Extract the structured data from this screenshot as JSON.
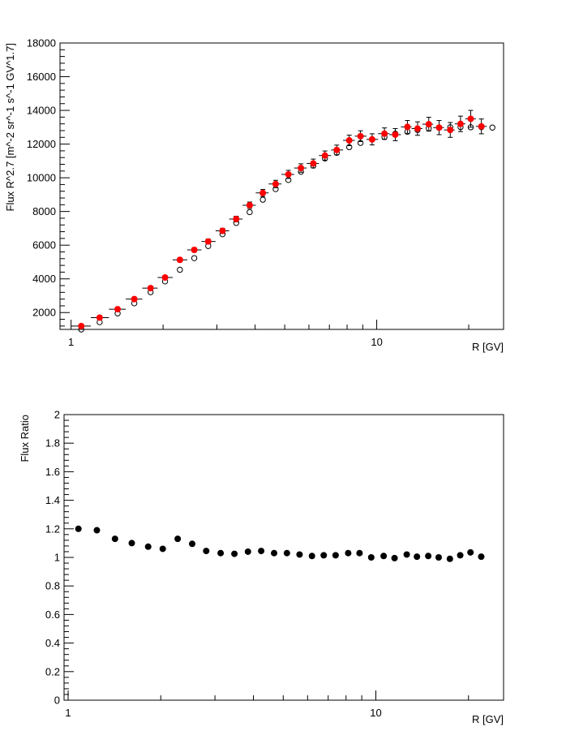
{
  "chart_data": [
    {
      "type": "scatter",
      "xlabel": "R [GV]",
      "ylabel": "Flux R^2.7 [m^-2 sr^-1 s^-1 GV^1.7]",
      "xscale": "log",
      "xlim": [
        0.92,
        26
      ],
      "ylim": [
        1000,
        18000
      ],
      "xticks": [
        {
          "v": 1,
          "label": "1"
        },
        {
          "v": 10,
          "label": "10"
        }
      ],
      "yticks": [
        {
          "v": 2000,
          "label": "2000"
        },
        {
          "v": 4000,
          "label": "4000"
        },
        {
          "v": 6000,
          "label": "6000"
        },
        {
          "v": 8000,
          "label": "8000"
        },
        {
          "v": 10000,
          "label": "10000"
        },
        {
          "v": 12000,
          "label": "12000"
        },
        {
          "v": 14000,
          "label": "14000"
        },
        {
          "v": 16000,
          "label": "16000"
        },
        {
          "v": 18000,
          "label": "18000"
        }
      ],
      "grid": false,
      "series": [
        {
          "marker": "filled-circle",
          "color": "#ff0000",
          "error_bars": true,
          "points": [
            {
              "x": 1.08,
              "xlo": 1.0,
              "xhi": 1.16,
              "y": 1200,
              "err": 60
            },
            {
              "x": 1.24,
              "xlo": 1.16,
              "xhi": 1.33,
              "y": 1700,
              "err": 80
            },
            {
              "x": 1.42,
              "xlo": 1.33,
              "xhi": 1.51,
              "y": 2200,
              "err": 90
            },
            {
              "x": 1.61,
              "xlo": 1.51,
              "xhi": 1.71,
              "y": 2800,
              "err": 100
            },
            {
              "x": 1.82,
              "xlo": 1.71,
              "xhi": 1.92,
              "y": 3450,
              "err": 110
            },
            {
              "x": 2.03,
              "xlo": 1.92,
              "xhi": 2.15,
              "y": 4080,
              "err": 120
            },
            {
              "x": 2.27,
              "xlo": 2.15,
              "xhi": 2.4,
              "y": 5130,
              "err": 120
            },
            {
              "x": 2.53,
              "xlo": 2.4,
              "xhi": 2.67,
              "y": 5720,
              "err": 130
            },
            {
              "x": 2.81,
              "xlo": 2.67,
              "xhi": 2.97,
              "y": 6220,
              "err": 140
            },
            {
              "x": 3.13,
              "xlo": 2.97,
              "xhi": 3.29,
              "y": 6850,
              "err": 150
            },
            {
              "x": 3.47,
              "xlo": 3.29,
              "xhi": 3.64,
              "y": 7550,
              "err": 170
            },
            {
              "x": 3.84,
              "xlo": 3.64,
              "xhi": 4.02,
              "y": 8370,
              "err": 190
            },
            {
              "x": 4.24,
              "xlo": 4.02,
              "xhi": 4.43,
              "y": 9100,
              "err": 210
            },
            {
              "x": 4.67,
              "xlo": 4.43,
              "xhi": 4.88,
              "y": 9630,
              "err": 220
            },
            {
              "x": 5.14,
              "xlo": 4.88,
              "xhi": 5.37,
              "y": 10200,
              "err": 240
            },
            {
              "x": 5.65,
              "xlo": 5.37,
              "xhi": 5.9,
              "y": 10580,
              "err": 250
            },
            {
              "x": 6.2,
              "xlo": 5.9,
              "xhi": 6.47,
              "y": 10850,
              "err": 260
            },
            {
              "x": 6.77,
              "xlo": 6.47,
              "xhi": 7.09,
              "y": 11320,
              "err": 270
            },
            {
              "x": 7.4,
              "xlo": 7.09,
              "xhi": 7.76,
              "y": 11650,
              "err": 290
            },
            {
              "x": 8.13,
              "xlo": 7.76,
              "xhi": 8.48,
              "y": 12220,
              "err": 310
            },
            {
              "x": 8.85,
              "xlo": 8.48,
              "xhi": 9.26,
              "y": 12470,
              "err": 320
            },
            {
              "x": 9.66,
              "xlo": 9.26,
              "xhi": 10.1,
              "y": 12280,
              "err": 330
            },
            {
              "x": 10.6,
              "xlo": 10.1,
              "xhi": 11.0,
              "y": 12620,
              "err": 340
            },
            {
              "x": 11.5,
              "xlo": 11.0,
              "xhi": 12.0,
              "y": 12560,
              "err": 360
            },
            {
              "x": 12.6,
              "xlo": 12.0,
              "xhi": 13.0,
              "y": 13020,
              "err": 380
            },
            {
              "x": 13.6,
              "xlo": 13.0,
              "xhi": 14.1,
              "y": 12920,
              "err": 400
            },
            {
              "x": 14.8,
              "xlo": 14.1,
              "xhi": 15.3,
              "y": 13180,
              "err": 410
            },
            {
              "x": 16.0,
              "xlo": 15.3,
              "xhi": 16.6,
              "y": 12980,
              "err": 420
            },
            {
              "x": 17.4,
              "xlo": 16.6,
              "xhi": 18.0,
              "y": 12840,
              "err": 440
            },
            {
              "x": 18.8,
              "xlo": 18.0,
              "xhi": 19.5,
              "y": 13200,
              "err": 460
            },
            {
              "x": 20.3,
              "xlo": 19.5,
              "xhi": 21.1,
              "y": 13500,
              "err": 500
            },
            {
              "x": 22.0,
              "xlo": 21.1,
              "xhi": 22.9,
              "y": 13050,
              "err": 440
            }
          ]
        },
        {
          "marker": "open-circle",
          "color": "#000000",
          "error_bars": false,
          "points": [
            {
              "x": 1.08,
              "y": 1000
            },
            {
              "x": 1.24,
              "y": 1430
            },
            {
              "x": 1.42,
              "y": 1950
            },
            {
              "x": 1.61,
              "y": 2550
            },
            {
              "x": 1.82,
              "y": 3210
            },
            {
              "x": 2.03,
              "y": 3850
            },
            {
              "x": 2.27,
              "y": 4540
            },
            {
              "x": 2.53,
              "y": 5230
            },
            {
              "x": 2.81,
              "y": 5950
            },
            {
              "x": 3.13,
              "y": 6650
            },
            {
              "x": 3.47,
              "y": 7320
            },
            {
              "x": 3.84,
              "y": 7960
            },
            {
              "x": 4.24,
              "y": 8700
            },
            {
              "x": 4.67,
              "y": 9330
            },
            {
              "x": 5.14,
              "y": 9870
            },
            {
              "x": 5.65,
              "y": 10360
            },
            {
              "x": 6.2,
              "y": 10720
            },
            {
              "x": 6.77,
              "y": 11150
            },
            {
              "x": 7.4,
              "y": 11480
            },
            {
              "x": 8.13,
              "y": 11820
            },
            {
              "x": 8.85,
              "y": 12070
            },
            {
              "x": 9.66,
              "y": 12270
            },
            {
              "x": 10.6,
              "y": 12420
            },
            {
              "x": 11.5,
              "y": 12620
            },
            {
              "x": 12.6,
              "y": 12730
            },
            {
              "x": 13.6,
              "y": 12840
            },
            {
              "x": 14.8,
              "y": 12930
            },
            {
              "x": 16.0,
              "y": 12980
            },
            {
              "x": 17.4,
              "y": 13000
            },
            {
              "x": 18.8,
              "y": 13010
            },
            {
              "x": 20.3,
              "y": 13000
            },
            {
              "x": 22.0,
              "y": 13010
            },
            {
              "x": 23.9,
              "y": 12980
            }
          ]
        }
      ]
    },
    {
      "type": "scatter",
      "xlabel": "R [GV]",
      "ylabel": "Flux Ratio",
      "xscale": "log",
      "xlim": [
        0.97,
        26
      ],
      "ylim": [
        0,
        2
      ],
      "xticks": [
        {
          "v": 1,
          "label": "1"
        },
        {
          "v": 10,
          "label": "10"
        }
      ],
      "yticks": [
        {
          "v": 0,
          "label": "0"
        },
        {
          "v": 0.2,
          "label": "0.2"
        },
        {
          "v": 0.4,
          "label": "0.4"
        },
        {
          "v": 0.6,
          "label": "0.6"
        },
        {
          "v": 0.8,
          "label": "0.8"
        },
        {
          "v": 1,
          "label": "1"
        },
        {
          "v": 1.2,
          "label": "1.2"
        },
        {
          "v": 1.4,
          "label": "1.4"
        },
        {
          "v": 1.6,
          "label": "1.6"
        },
        {
          "v": 1.8,
          "label": "1.8"
        },
        {
          "v": 2,
          "label": "2"
        }
      ],
      "grid": false,
      "series": [
        {
          "marker": "filled-circle",
          "color": "#000000",
          "error_bars": false,
          "points": [
            {
              "x": 1.08,
              "y": 1.2
            },
            {
              "x": 1.24,
              "y": 1.19
            },
            {
              "x": 1.42,
              "y": 1.13
            },
            {
              "x": 1.61,
              "y": 1.1
            },
            {
              "x": 1.82,
              "y": 1.075
            },
            {
              "x": 2.03,
              "y": 1.06
            },
            {
              "x": 2.27,
              "y": 1.13
            },
            {
              "x": 2.53,
              "y": 1.095
            },
            {
              "x": 2.81,
              "y": 1.045
            },
            {
              "x": 3.13,
              "y": 1.03
            },
            {
              "x": 3.47,
              "y": 1.025
            },
            {
              "x": 3.84,
              "y": 1.04
            },
            {
              "x": 4.24,
              "y": 1.045
            },
            {
              "x": 4.67,
              "y": 1.03
            },
            {
              "x": 5.14,
              "y": 1.03
            },
            {
              "x": 5.65,
              "y": 1.02
            },
            {
              "x": 6.2,
              "y": 1.01
            },
            {
              "x": 6.77,
              "y": 1.015
            },
            {
              "x": 7.4,
              "y": 1.015
            },
            {
              "x": 8.13,
              "y": 1.03
            },
            {
              "x": 8.85,
              "y": 1.03
            },
            {
              "x": 9.66,
              "y": 1.0
            },
            {
              "x": 10.6,
              "y": 1.01
            },
            {
              "x": 11.5,
              "y": 0.995
            },
            {
              "x": 12.6,
              "y": 1.02
            },
            {
              "x": 13.6,
              "y": 1.005
            },
            {
              "x": 14.8,
              "y": 1.01
            },
            {
              "x": 16.0,
              "y": 1.0
            },
            {
              "x": 17.4,
              "y": 0.99
            },
            {
              "x": 18.8,
              "y": 1.015
            },
            {
              "x": 20.3,
              "y": 1.035
            },
            {
              "x": 22.0,
              "y": 1.005
            }
          ]
        }
      ]
    }
  ]
}
